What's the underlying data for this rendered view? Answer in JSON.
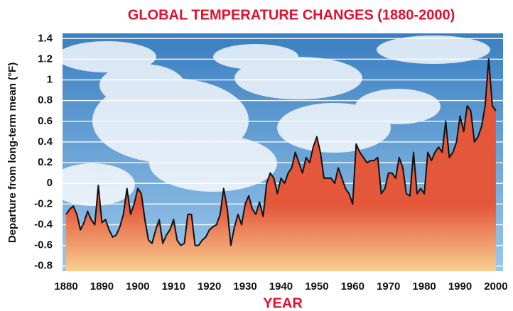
{
  "chart_data": {
    "type": "area",
    "title": "GLOBAL TEMPERATURE CHANGES (1880-2000)",
    "xlabel": "YEAR",
    "ylabel": "Departure from long-term mean (°F)",
    "x": [
      1880,
      1881,
      1882,
      1883,
      1884,
      1885,
      1886,
      1887,
      1888,
      1889,
      1890,
      1891,
      1892,
      1893,
      1894,
      1895,
      1896,
      1897,
      1898,
      1899,
      1900,
      1901,
      1902,
      1903,
      1904,
      1905,
      1906,
      1907,
      1908,
      1909,
      1910,
      1911,
      1912,
      1913,
      1914,
      1915,
      1916,
      1917,
      1918,
      1919,
      1920,
      1921,
      1922,
      1923,
      1924,
      1925,
      1926,
      1927,
      1928,
      1929,
      1930,
      1931,
      1932,
      1933,
      1934,
      1935,
      1936,
      1937,
      1938,
      1939,
      1940,
      1941,
      1942,
      1943,
      1944,
      1945,
      1946,
      1947,
      1948,
      1949,
      1950,
      1951,
      1952,
      1953,
      1954,
      1955,
      1956,
      1957,
      1958,
      1959,
      1960,
      1961,
      1962,
      1963,
      1964,
      1965,
      1966,
      1967,
      1968,
      1969,
      1970,
      1971,
      1972,
      1973,
      1974,
      1975,
      1976,
      1977,
      1978,
      1979,
      1980,
      1981,
      1982,
      1983,
      1984,
      1985,
      1986,
      1987,
      1988,
      1989,
      1990,
      1991,
      1992,
      1993,
      1994,
      1995,
      1996,
      1997,
      1998,
      1999,
      2000
    ],
    "values": [
      -0.3,
      -0.25,
      -0.22,
      -0.3,
      -0.45,
      -0.38,
      -0.27,
      -0.35,
      -0.4,
      -0.02,
      -0.38,
      -0.35,
      -0.45,
      -0.52,
      -0.5,
      -0.42,
      -0.3,
      -0.05,
      -0.3,
      -0.2,
      -0.05,
      -0.1,
      -0.35,
      -0.55,
      -0.58,
      -0.45,
      -0.35,
      -0.58,
      -0.5,
      -0.45,
      -0.35,
      -0.55,
      -0.6,
      -0.58,
      -0.3,
      -0.3,
      -0.6,
      -0.6,
      -0.55,
      -0.52,
      -0.45,
      -0.42,
      -0.4,
      -0.3,
      -0.05,
      -0.25,
      -0.6,
      -0.42,
      -0.3,
      -0.4,
      -0.2,
      -0.12,
      -0.25,
      -0.3,
      -0.18,
      -0.32,
      0.0,
      0.1,
      0.05,
      -0.1,
      0.05,
      0.0,
      0.1,
      0.15,
      0.3,
      0.2,
      0.1,
      0.25,
      0.2,
      0.35,
      0.45,
      0.3,
      0.05,
      0.05,
      0.05,
      0.0,
      0.15,
      0.05,
      -0.05,
      -0.1,
      -0.2,
      0.38,
      0.3,
      0.25,
      0.2,
      0.22,
      0.22,
      0.25,
      -0.1,
      -0.05,
      0.1,
      0.1,
      0.05,
      0.25,
      0.15,
      -0.1,
      -0.12,
      0.3,
      -0.1,
      -0.05,
      -0.1,
      0.3,
      0.22,
      0.3,
      0.35,
      0.3,
      0.6,
      0.25,
      0.3,
      0.4,
      0.65,
      0.5,
      0.75,
      0.7,
      0.4,
      0.45,
      0.55,
      0.75,
      1.2,
      0.75,
      0.7
    ],
    "color": "#e4573b",
    "line_color": "#111111",
    "xlim": [
      1879,
      2002
    ],
    "xticks": [
      1880,
      1890,
      1900,
      1910,
      1920,
      1930,
      1940,
      1950,
      1960,
      1970,
      1980,
      1990,
      2000
    ],
    "ylim": [
      -0.85,
      1.45
    ],
    "yticks": [
      1.4,
      1.2,
      1,
      0.8,
      0.6,
      0.4,
      0.2,
      0,
      -0.2,
      -0.4,
      -0.6,
      -0.8
    ],
    "grid": true
  }
}
